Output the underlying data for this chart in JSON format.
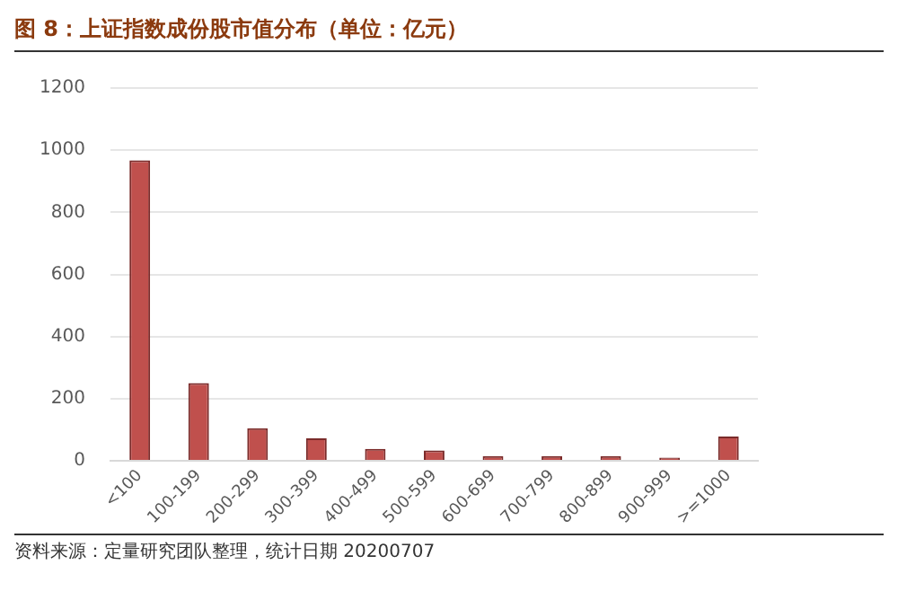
{
  "chart_data": {
    "type": "bar",
    "title": "图 8：上证指数成份股市值分布（单位：亿元）",
    "categories": [
      "<100",
      "100-199",
      "200-299",
      "300-399",
      "400-499",
      "500-599",
      "600-699",
      "700-799",
      "800-899",
      "900-999",
      ">=1000"
    ],
    "values": [
      967,
      250,
      105,
      72,
      38,
      33,
      15,
      15,
      15,
      10,
      78
    ],
    "color": "#c0504d",
    "ylim": [
      0,
      1200
    ],
    "yticks": [
      0,
      200,
      400,
      600,
      800,
      1000,
      1200
    ],
    "grid": "y",
    "annotations": [
      "资料来源：定量研究团队整理，统计日期 20200707"
    ]
  }
}
